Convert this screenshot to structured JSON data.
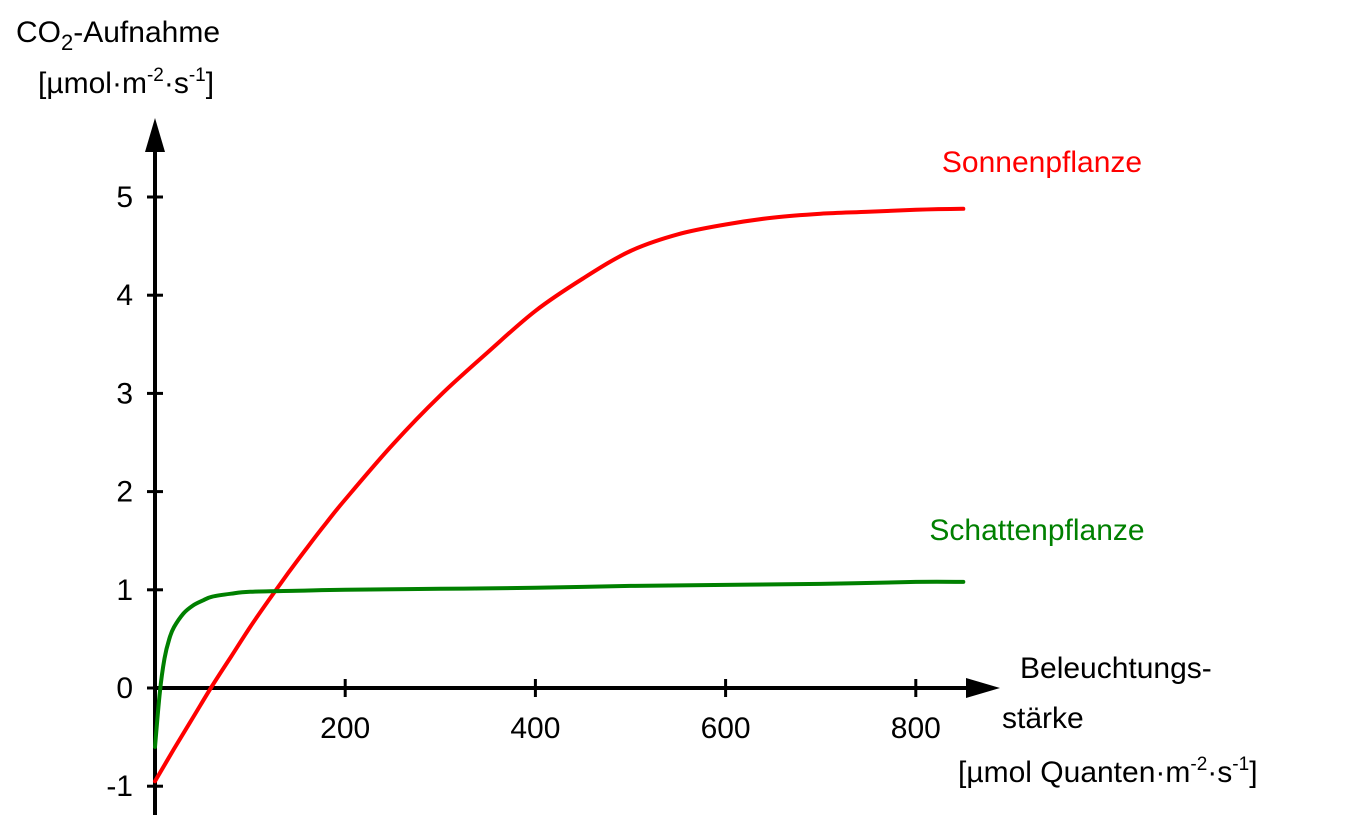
{
  "chart_data": {
    "type": "line",
    "title": "",
    "ylabel": {
      "line1_prefix": "CO",
      "line1_sub": "2",
      "line1_suffix": "-Aufnahme",
      "line2_open": "[µmol·m",
      "line2_exp1": "-2",
      "line2_mid": "·s",
      "line2_exp2": "-1",
      "line2_close": "]"
    },
    "xlabel": {
      "line1": "Beleuchtungs-",
      "line2": "stärke",
      "line3_open": "[µmol Quanten·m",
      "line3_exp1": "-2",
      "line3_mid": "·s",
      "line3_exp2": "-1",
      "line3_close": "]"
    },
    "xlim": [
      0,
      900
    ],
    "ylim": [
      -1,
      5.5
    ],
    "xticks": [
      200,
      400,
      600,
      800
    ],
    "yticks": [
      -1,
      0,
      1,
      2,
      3,
      4,
      5
    ],
    "grid": false,
    "series": [
      {
        "name": "Sonnenpflanze",
        "color": "#ff0000",
        "x": [
          0,
          20,
          40,
          60,
          80,
          100,
          120,
          140,
          160,
          180,
          200,
          250,
          300,
          350,
          400,
          450,
          500,
          550,
          600,
          650,
          700,
          750,
          800,
          850
        ],
        "y": [
          -0.95,
          -0.62,
          -0.3,
          0.02,
          0.32,
          0.62,
          0.9,
          1.17,
          1.43,
          1.68,
          1.92,
          2.48,
          2.98,
          3.42,
          3.84,
          4.17,
          4.45,
          4.62,
          4.72,
          4.79,
          4.83,
          4.85,
          4.87,
          4.88
        ]
      },
      {
        "name": "Schattenpflanze",
        "color": "#008000",
        "x": [
          0,
          5,
          10,
          15,
          20,
          30,
          40,
          50,
          60,
          80,
          100,
          150,
          200,
          300,
          400,
          500,
          600,
          700,
          800,
          850
        ],
        "y": [
          -0.6,
          -0.05,
          0.3,
          0.5,
          0.62,
          0.76,
          0.84,
          0.89,
          0.93,
          0.96,
          0.98,
          0.99,
          1.0,
          1.01,
          1.02,
          1.04,
          1.05,
          1.06,
          1.08,
          1.08
        ]
      }
    ]
  }
}
